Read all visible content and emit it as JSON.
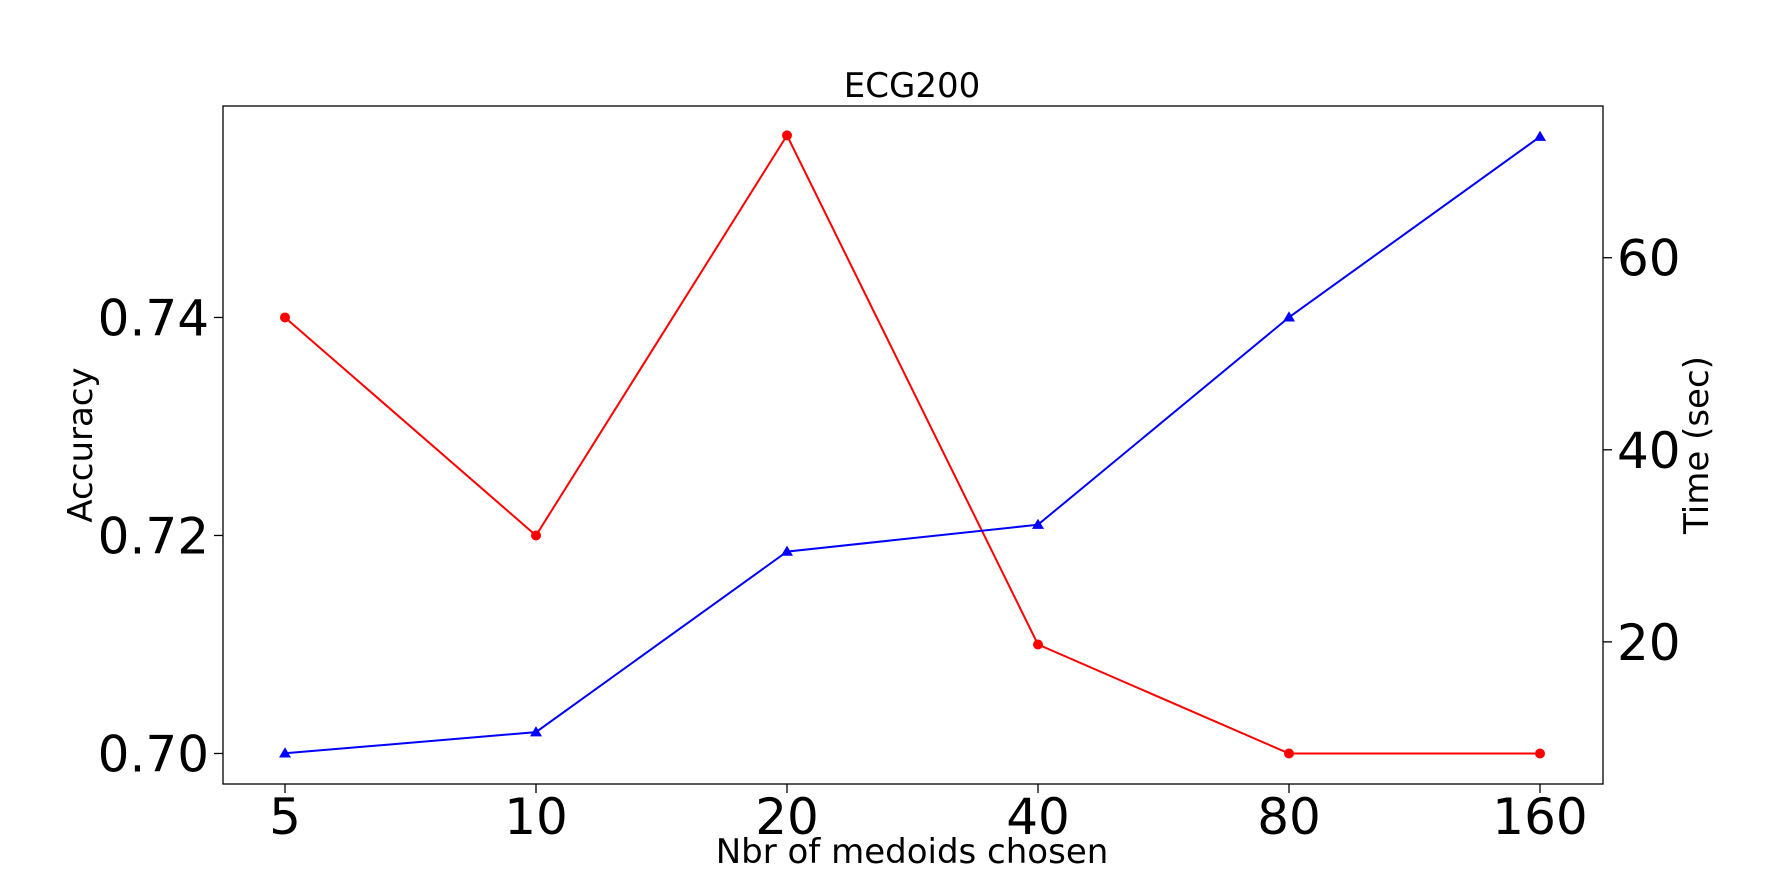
{
  "chart_data": {
    "type": "line",
    "title": "ECG200",
    "xlabel": "Nbr of medoids chosen",
    "ylabel": "Accuracy",
    "y2label": "Time (sec)",
    "categories": [
      "5",
      "10",
      "20",
      "40",
      "80",
      "160"
    ],
    "ylim": [
      0.6972,
      0.7594
    ],
    "y2lim": [
      5.2,
      75.8
    ],
    "yticks": [
      "0.70",
      "0.72",
      "0.74"
    ],
    "y2ticks": [
      "20",
      "40",
      "60"
    ],
    "grid": false,
    "series": [
      {
        "axis": "left",
        "color": "#ff0000",
        "marker": "circle",
        "values": [
          0.74,
          0.72,
          0.7567,
          0.71,
          0.7,
          0.7
        ]
      },
      {
        "axis": "right",
        "color": "#0000ff",
        "marker": "triangle",
        "values": [
          8.4,
          10.6,
          29.4,
          32.2,
          53.8,
          72.6
        ]
      }
    ]
  }
}
